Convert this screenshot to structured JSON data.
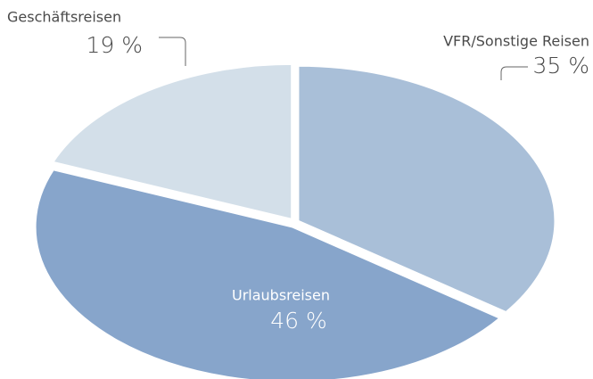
{
  "chart_data": {
    "type": "pie",
    "categories": [
      "VFR/Sonstige Reisen",
      "Urlaubsreisen",
      "Geschäftsreisen"
    ],
    "values": [
      35,
      46,
      19
    ],
    "value_labels": [
      "35 %",
      "46 %",
      "19 %"
    ],
    "colors": [
      "#a9bfd8",
      "#87a5cb",
      "#d3dfe9"
    ]
  }
}
